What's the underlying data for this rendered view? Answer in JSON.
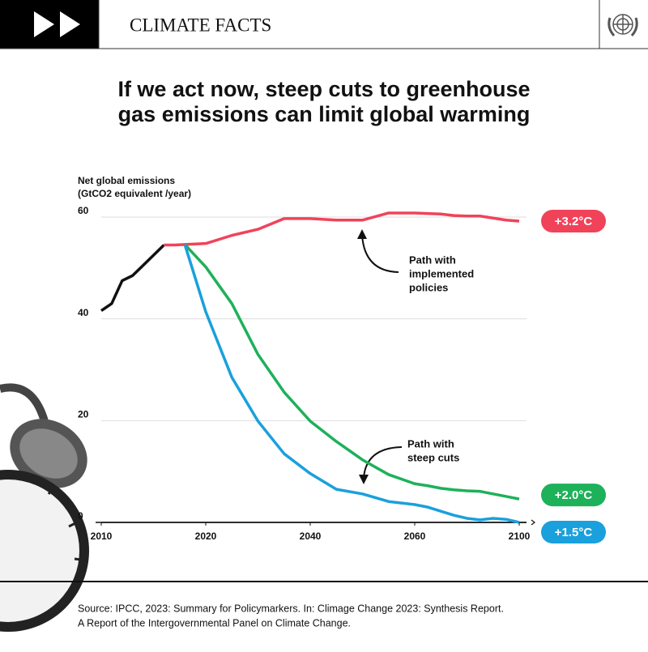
{
  "header": {
    "title": "CLIMATE FACTS"
  },
  "chart_data": {
    "type": "line",
    "title": [
      "If we act now, steep cuts to greenhouse",
      "gas emissions can limit global warming"
    ],
    "ylabel": [
      "Net global emissions",
      "(GtCO2 equivalent /year)"
    ],
    "x": [
      2010,
      2011,
      2012,
      2013,
      2014,
      2015,
      2016,
      2017,
      2018,
      2020,
      2025,
      2030,
      2035,
      2040,
      2045,
      2050,
      2055,
      2060,
      2065,
      2070,
      2075,
      2080,
      2085,
      2090,
      2095,
      2100
    ],
    "xlim": [
      2010,
      2100
    ],
    "xticks": [
      2010,
      2020,
      2040,
      2060,
      2100
    ],
    "ylim": [
      0,
      60
    ],
    "yticks": [
      0,
      20,
      40,
      60
    ],
    "grid": true,
    "series": [
      {
        "color": "#111111",
        "values": [
          41.6,
          43.0,
          47.5,
          48.5,
          50.5,
          52.5,
          54.5,
          null,
          null,
          null,
          null,
          null,
          null,
          null,
          null,
          null,
          null,
          null,
          null,
          null,
          null,
          null,
          null,
          null,
          null,
          null
        ]
      },
      {
        "name": "+3.2°C",
        "color": "#f0435a",
        "values": [
          null,
          null,
          null,
          null,
          null,
          null,
          54.5,
          54.5,
          54.6,
          54.8,
          56.4,
          57.6,
          59.7,
          59.7,
          59.4,
          59.4,
          60.8,
          60.8,
          60.7,
          60.6,
          60.3,
          60.2,
          60.2,
          59.8,
          59.4,
          59.2
        ]
      },
      {
        "name": "+2.0°C",
        "color": "#1db15a",
        "values": [
          null,
          null,
          null,
          null,
          null,
          null,
          null,
          null,
          54.6,
          50.2,
          43.0,
          33.0,
          25.6,
          19.9,
          15.9,
          12.3,
          9.4,
          7.6,
          7.2,
          6.7,
          6.4,
          6.2,
          6.1,
          5.6,
          5.1,
          4.6
        ]
      },
      {
        "name": "+1.5°C",
        "color": "#1aa0dc",
        "values": [
          null,
          null,
          null,
          null,
          null,
          null,
          null,
          null,
          54.6,
          41.4,
          28.5,
          19.9,
          13.5,
          9.6,
          6.5,
          5.6,
          4.1,
          3.5,
          3.0,
          2.2,
          1.4,
          0.8,
          0.5,
          0.8,
          0.6,
          0
        ]
      }
    ],
    "annotations": [
      {
        "lines": [
          "Path with",
          "implemented",
          "policies"
        ]
      },
      {
        "lines": [
          "Path with",
          "steep cuts"
        ]
      }
    ]
  },
  "source": [
    "Source: IPCC, 2023: Summary for Policymarkers. In: Climage Change 2023: Synthesis Report.",
    "A Report of the Intergovernmental Panel on Climate Change."
  ]
}
